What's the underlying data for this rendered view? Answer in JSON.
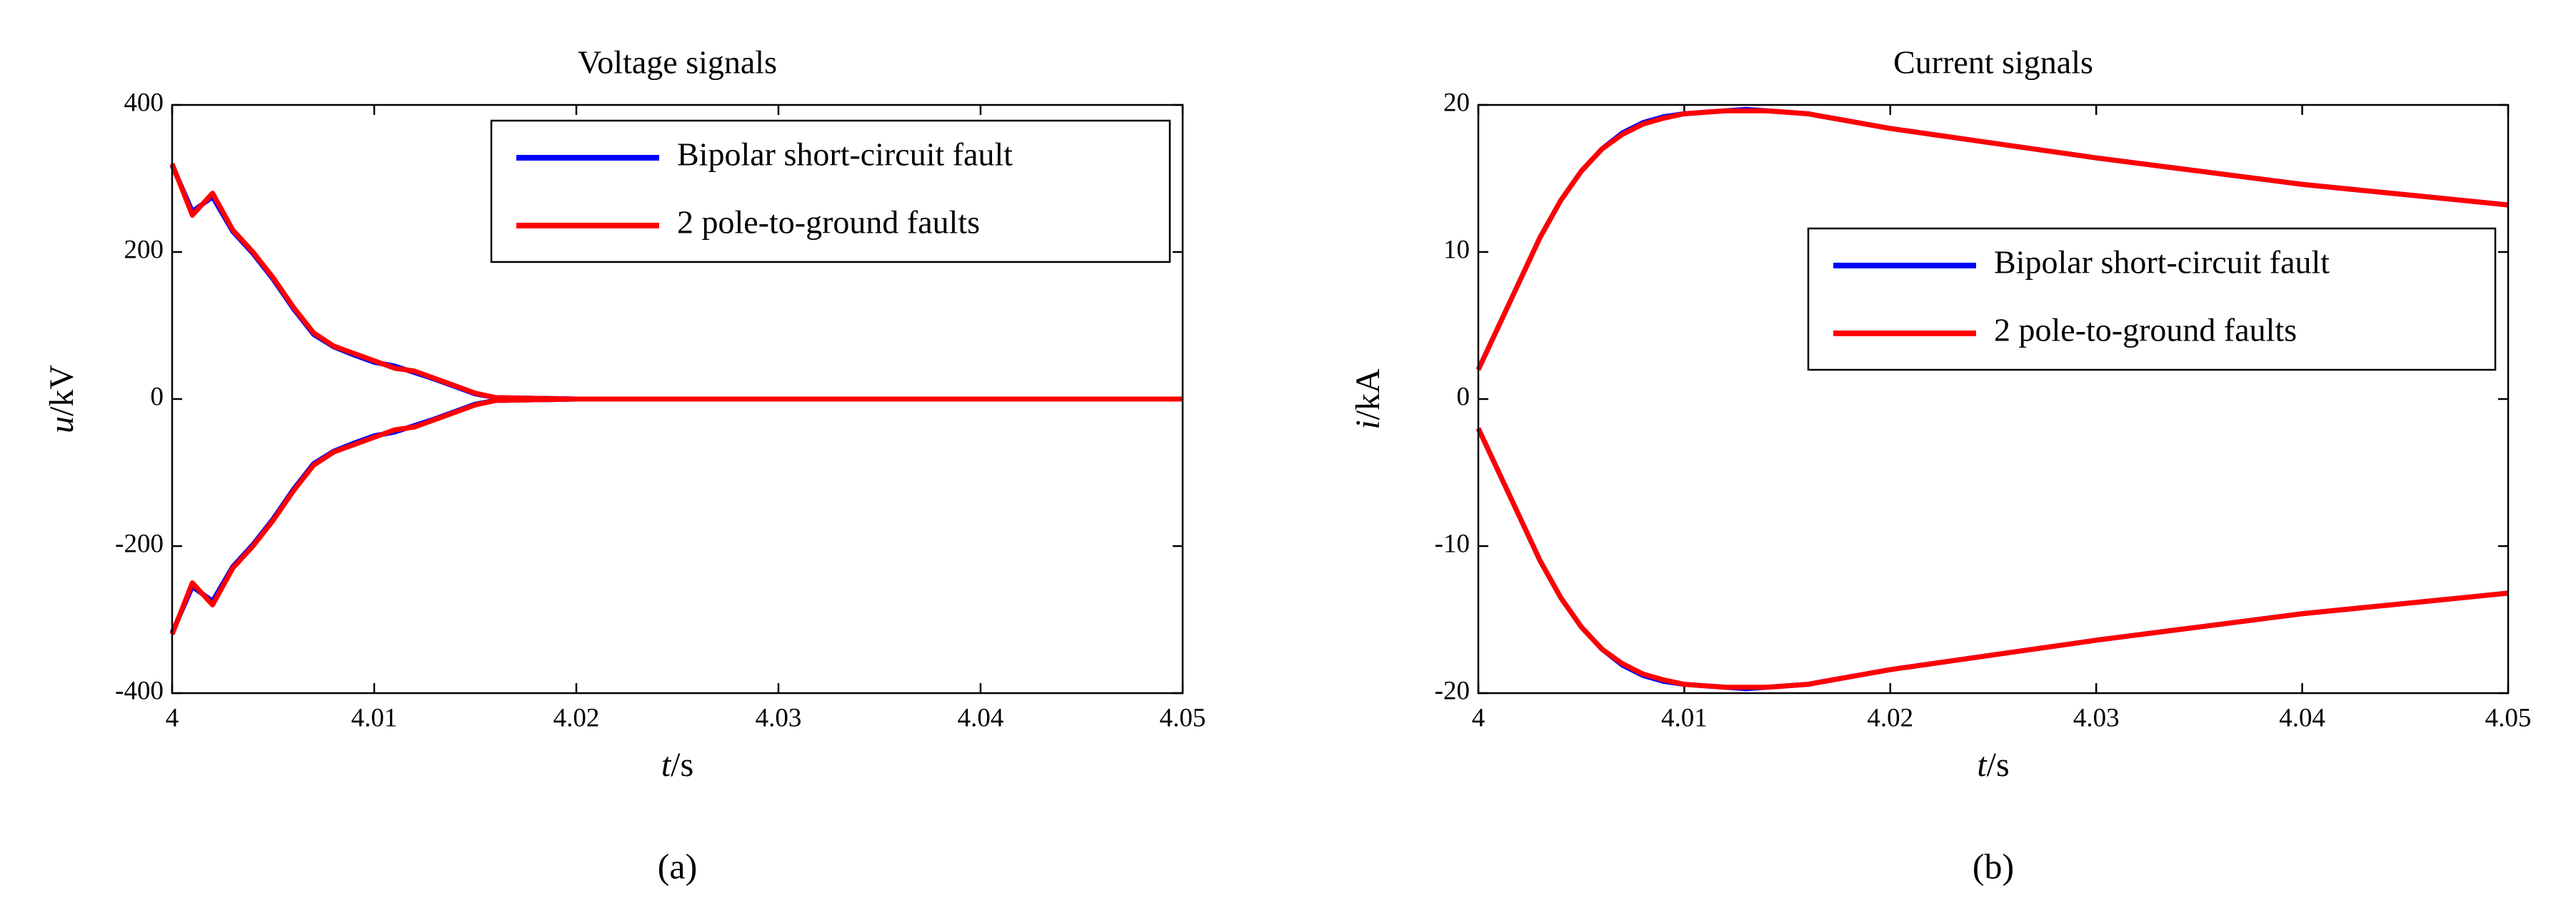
{
  "chart_data": [
    {
      "type": "line",
      "title": "Voltage signals",
      "xlabel_symbol": "t",
      "xlabel_unit": "/s",
      "ylabel_symbol": "u",
      "ylabel_unit": "/kV",
      "panel_label": "(a)",
      "x": [
        4,
        4.001,
        4.002,
        4.003,
        4.004,
        4.005,
        4.006,
        4.007,
        4.008,
        4.009,
        4.01,
        4.011,
        4.012,
        4.013,
        4.014,
        4.015,
        4.016,
        4.02,
        4.025,
        4.03,
        4.035,
        4.04,
        4.045,
        4.05
      ],
      "series": [
        {
          "name": "Bipolar short-circuit fault",
          "color": "#0000ff",
          "values": [
            318,
            255,
            275,
            228,
            198,
            163,
            123,
            88,
            71,
            60,
            50,
            45,
            36,
            27,
            17,
            7,
            2,
            0,
            0,
            0,
            0,
            0,
            0,
            0
          ],
          "values_lower": [
            -318,
            -255,
            -275,
            -228,
            -198,
            -163,
            -123,
            -88,
            -71,
            -60,
            -50,
            -45,
            -36,
            -27,
            -17,
            -7,
            -2,
            0,
            0,
            0,
            0,
            0,
            0,
            0
          ]
        },
        {
          "name": "2 pole-to-ground faults",
          "color": "#ff0000",
          "values": [
            320,
            250,
            280,
            230,
            200,
            165,
            125,
            90,
            72,
            62,
            52,
            42,
            38,
            28,
            18,
            8,
            2,
            0,
            0,
            0,
            0,
            0,
            0,
            0
          ],
          "values_lower": [
            -320,
            -250,
            -280,
            -230,
            -200,
            -165,
            -125,
            -90,
            -72,
            -62,
            -52,
            -42,
            -38,
            -28,
            -18,
            -8,
            -2,
            0,
            0,
            0,
            0,
            0,
            0,
            0
          ]
        }
      ],
      "xlim": [
        4,
        4.05
      ],
      "xticks": [
        4,
        4.01,
        4.02,
        4.03,
        4.04,
        4.05
      ],
      "ylim": [
        -400,
        400
      ],
      "yticks": [
        -400,
        -200,
        0,
        200,
        400
      ],
      "legend": "upper right"
    },
    {
      "type": "line",
      "title": "Current signals",
      "xlabel_symbol": "t",
      "xlabel_unit": "/s",
      "ylabel_symbol": "i",
      "ylabel_unit": "/kA",
      "panel_label": "(b)",
      "x": [
        4,
        4.001,
        4.002,
        4.003,
        4.004,
        4.005,
        4.006,
        4.007,
        4.008,
        4.009,
        4.01,
        4.011,
        4.012,
        4.013,
        4.014,
        4.015,
        4.016,
        4.02,
        4.025,
        4.03,
        4.035,
        4.04,
        4.045,
        4.05
      ],
      "series": [
        {
          "name": "Bipolar short-circuit fault",
          "color": "#0000ff",
          "values": [
            2,
            5,
            8,
            11,
            13.5,
            15.5,
            17,
            18.1,
            18.8,
            19.2,
            19.4,
            19.5,
            19.6,
            19.7,
            19.6,
            19.5,
            19.4,
            18.4,
            17.4,
            16.4,
            15.5,
            14.6,
            13.9,
            13.2
          ],
          "values_lower": [
            -2,
            -5,
            -8,
            -11,
            -13.5,
            -15.5,
            -17,
            -18.1,
            -18.8,
            -19.2,
            -19.4,
            -19.5,
            -19.6,
            -19.7,
            -19.6,
            -19.5,
            -19.4,
            -18.4,
            -17.4,
            -16.4,
            -15.5,
            -14.6,
            -13.9,
            -13.2
          ]
        },
        {
          "name": "2 pole-to-ground faults",
          "color": "#ff0000",
          "values": [
            2,
            5,
            8,
            11,
            13.5,
            15.5,
            17,
            18,
            18.7,
            19.1,
            19.4,
            19.5,
            19.6,
            19.6,
            19.6,
            19.5,
            19.4,
            18.4,
            17.4,
            16.4,
            15.5,
            14.6,
            13.9,
            13.2
          ],
          "values_lower": [
            -2,
            -5,
            -8,
            -11,
            -13.5,
            -15.5,
            -17,
            -18,
            -18.7,
            -19.1,
            -19.4,
            -19.5,
            -19.6,
            -19.6,
            -19.6,
            -19.5,
            -19.4,
            -18.4,
            -17.4,
            -16.4,
            -15.5,
            -14.6,
            -13.9,
            -13.2
          ]
        }
      ],
      "xlim": [
        4,
        4.05
      ],
      "xticks": [
        4,
        4.01,
        4.02,
        4.03,
        4.04,
        4.05
      ],
      "ylim": [
        -20,
        20
      ],
      "yticks": [
        -20,
        -10,
        0,
        10,
        20
      ],
      "legend": "right"
    }
  ]
}
